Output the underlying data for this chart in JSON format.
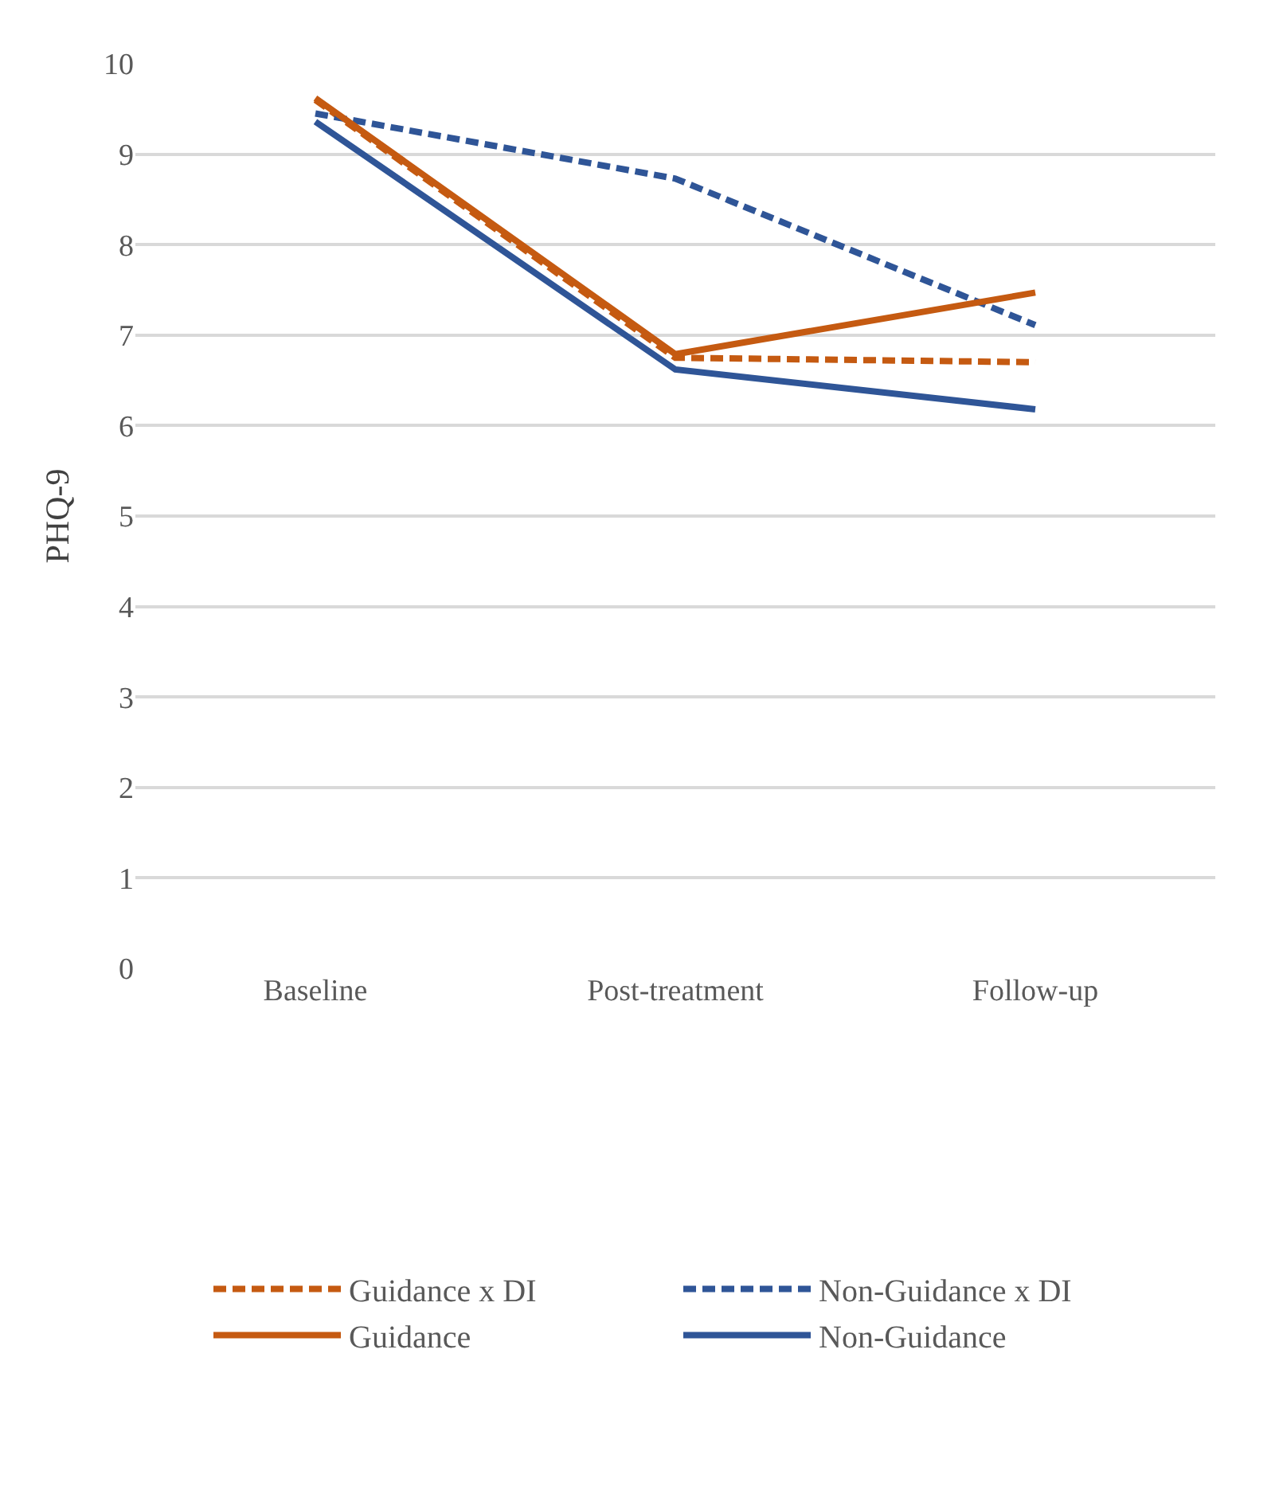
{
  "chart_data": {
    "type": "line",
    "ylabel": "PHQ-9",
    "categories": [
      "Baseline",
      "Post-treatment",
      "Follow-up"
    ],
    "series": [
      {
        "name": "Guidance x DI",
        "color": "#c55a11",
        "line_style": "dashed",
        "values": [
          9.6,
          6.75,
          6.7
        ]
      },
      {
        "name": "Non-Guidance x DI",
        "color": "#2f5597",
        "line_style": "dashed",
        "values": [
          9.45,
          8.73,
          7.11
        ]
      },
      {
        "name": "Guidance",
        "color": "#c55a11",
        "line_style": "solid",
        "values": [
          9.62,
          6.79,
          7.47
        ]
      },
      {
        "name": "Non-Guidance",
        "color": "#2f5597",
        "line_style": "solid",
        "values": [
          9.36,
          6.62,
          6.18
        ]
      }
    ],
    "ylim": [
      0,
      10
    ],
    "yticks": [
      0,
      1,
      2,
      3,
      4,
      5,
      6,
      7,
      8,
      9,
      10
    ],
    "grid": "y",
    "legend": "bottom",
    "marker": "none"
  }
}
